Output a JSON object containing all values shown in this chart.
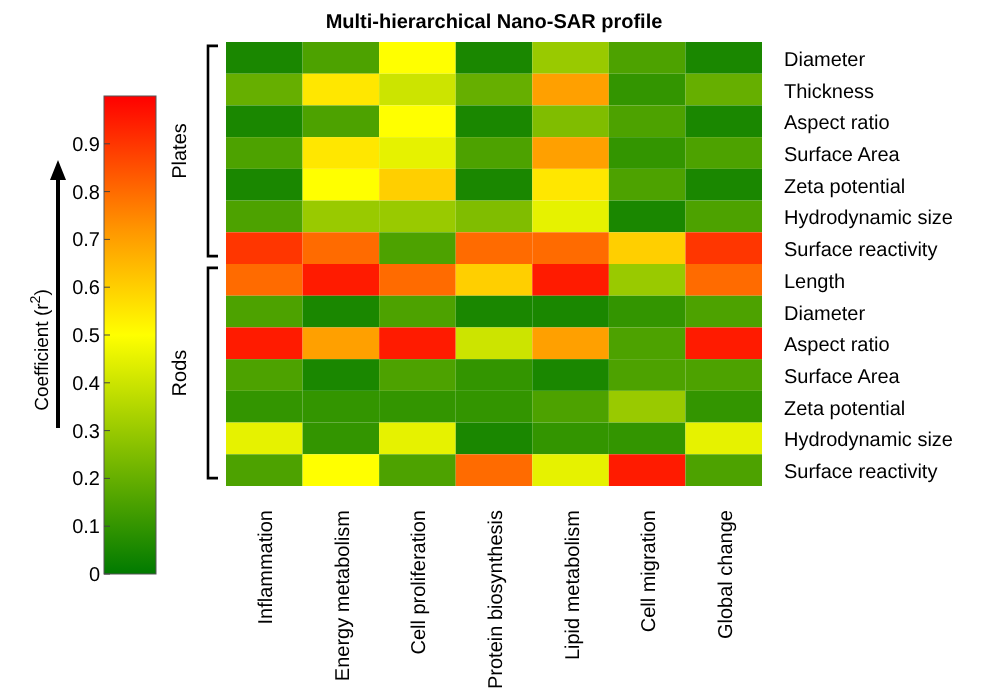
{
  "chart_data": {
    "type": "heatmap",
    "title": "Multi-hierarchical Nano-SAR profile",
    "clabel": "Coefficient (r$^{2}$)",
    "categories": [
      "Inflammation",
      "Energy metabolism",
      "Cell proliferation",
      "Protein biosynthesis",
      "Lipid metabolism",
      "Cell migration",
      "Global change"
    ],
    "y_categories": [
      "Diameter",
      "Thickness",
      "Aspect ratio",
      "Surface Area",
      "Zeta potential",
      "Hydrodynamic size",
      "Surface reactivity",
      "Length",
      "Diameter",
      "Aspect ratio",
      "Surface Area",
      "Zeta potential",
      "Hydrodynamic size",
      "Surface reactivity"
    ],
    "cells": [
      [
        0.05,
        0.15,
        0.5,
        0.05,
        0.3,
        0.15,
        0.05
      ],
      [
        0.2,
        0.55,
        0.4,
        0.2,
        0.7,
        0.1,
        0.2
      ],
      [
        0.05,
        0.15,
        0.5,
        0.05,
        0.25,
        0.15,
        0.05
      ],
      [
        0.15,
        0.55,
        0.45,
        0.15,
        0.7,
        0.1,
        0.15
      ],
      [
        0.05,
        0.5,
        0.6,
        0.05,
        0.55,
        0.15,
        0.05
      ],
      [
        0.15,
        0.3,
        0.3,
        0.25,
        0.45,
        0.05,
        0.15
      ],
      [
        0.9,
        0.8,
        0.15,
        0.8,
        0.8,
        0.6,
        0.9
      ],
      [
        0.8,
        0.95,
        0.8,
        0.6,
        0.95,
        0.3,
        0.8
      ],
      [
        0.15,
        0.05,
        0.15,
        0.05,
        0.05,
        0.1,
        0.15
      ],
      [
        0.95,
        0.7,
        0.95,
        0.4,
        0.7,
        0.15,
        0.95
      ],
      [
        0.15,
        0.05,
        0.15,
        0.1,
        0.05,
        0.15,
        0.15
      ],
      [
        0.1,
        0.1,
        0.1,
        0.1,
        0.15,
        0.3,
        0.1
      ],
      [
        0.45,
        0.1,
        0.45,
        0.05,
        0.1,
        0.1,
        0.45
      ],
      [
        0.15,
        0.5,
        0.15,
        0.8,
        0.45,
        0.95,
        0.15
      ]
    ],
    "clim": [
      0,
      1
    ],
    "cticks": [
      0,
      0.1,
      0.2,
      0.3,
      0.4,
      0.5,
      0.6,
      0.7,
      0.8,
      0.9
    ],
    "annotations": [
      "Plates",
      "Rods"
    ]
  }
}
